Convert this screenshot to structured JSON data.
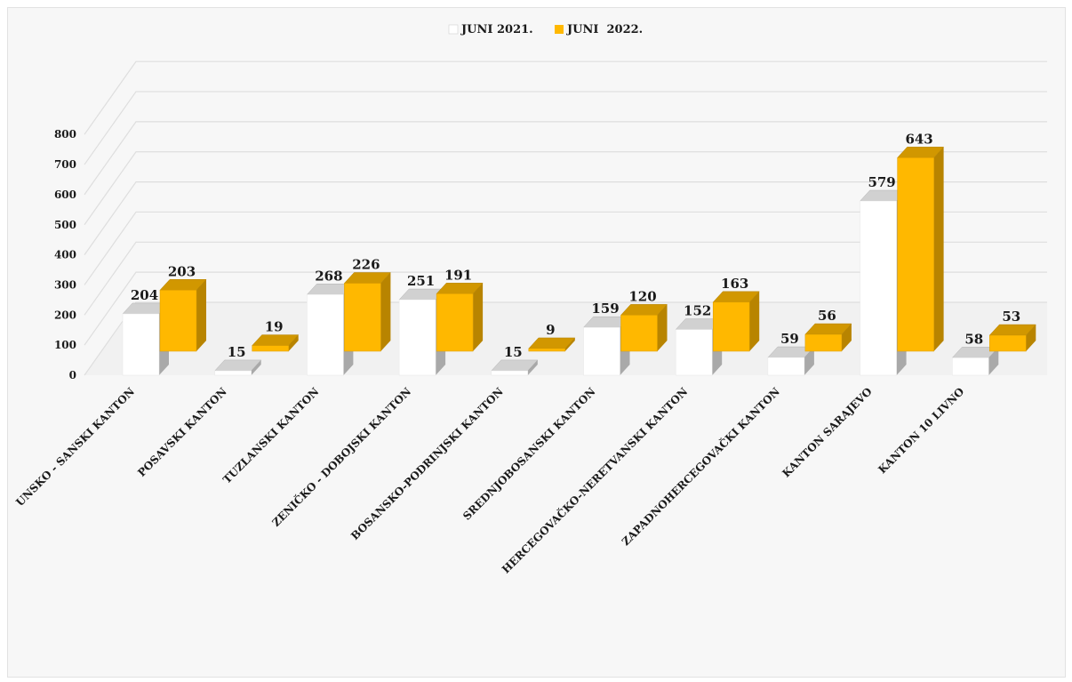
{
  "chart_data": {
    "type": "bar",
    "categories": [
      "UNSKO - SANSKI KANTON",
      "POSAVSKI KANTON",
      "TUZLANSKI KANTON",
      "ZENIČKO - DOBOJSKI KANTON",
      "BOSANSKO-PODRINJSKI KANTON",
      "SREDNJOBOSANSKI KANTON",
      "HERCEGOVAČKO-NERETVANSKI KANTON",
      "ZAPADNOHERCEGOVAČKI KANTON",
      "KANTON SARAJEVO",
      "KANTON 10 LIVNO"
    ],
    "series": [
      {
        "name": "JUNI 2021.",
        "values": [
          204,
          15,
          268,
          251,
          15,
          159,
          152,
          59,
          579,
          58
        ],
        "color": "#ffffff"
      },
      {
        "name": "JUNI  2022.",
        "values": [
          203,
          19,
          226,
          191,
          9,
          120,
          163,
          56,
          643,
          53
        ],
        "color": "#ffb800"
      }
    ],
    "y_ticks": [
      "0",
      "100",
      "200",
      "300",
      "400",
      "500",
      "600",
      "700",
      "800"
    ],
    "ylim": [
      0,
      800
    ],
    "grid": true,
    "legend_position": "top-center",
    "style": "3d-clustered-column"
  }
}
